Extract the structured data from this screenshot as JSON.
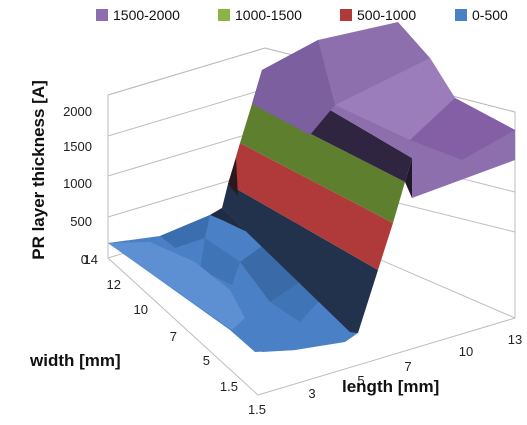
{
  "chart_data": {
    "type": "surface",
    "zlabel": "PR layer thickness [A]",
    "xlabel": "length [mm]",
    "ylabel": "width [mm]",
    "z_ticks": [
      "0",
      "500",
      "1000",
      "1500",
      "2000"
    ],
    "length_ticks": [
      "1.5",
      "3",
      "5",
      "7",
      "10",
      "13"
    ],
    "width_ticks": [
      "1.5",
      "5",
      "7",
      "10",
      "12",
      "14"
    ],
    "legend_position": "top",
    "bands": [
      {
        "label": "1500-2000",
        "color": "#8E6FAD"
      },
      {
        "label": "1000-1500",
        "color": "#8CB346"
      },
      {
        "label": "500-1000",
        "color": "#B03A3A"
      },
      {
        "label": "0-500",
        "color": "#4A80C5"
      }
    ],
    "thickness_profile": {
      "length_mm": [
        1.5,
        3,
        5,
        7,
        10,
        13
      ],
      "thickness_A": [
        120,
        170,
        250,
        2250,
        2180,
        2050
      ]
    }
  }
}
